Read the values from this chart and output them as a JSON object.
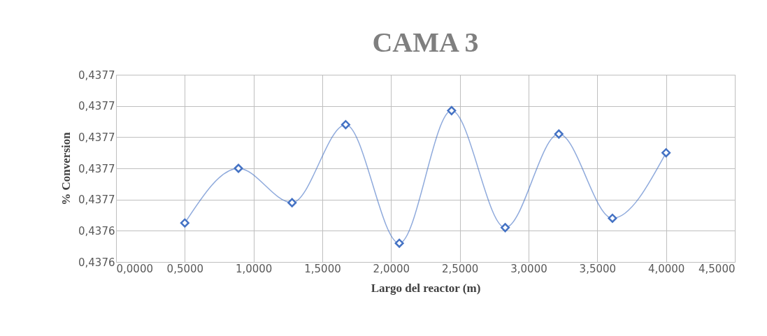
{
  "chart_data": {
    "type": "line",
    "title": "CAMA 3",
    "xlabel": "Largo del reactor (m)",
    "ylabel": "% Conversion",
    "x": [
      0.5,
      0.89,
      1.28,
      1.67,
      2.06,
      2.44,
      2.83,
      3.22,
      3.61,
      4.0
    ],
    "series": [
      {
        "color": "#4472c4",
        "values": [
          0.437645,
          0.43768,
          0.437658,
          0.437708,
          0.437632,
          0.437717,
          0.437642,
          0.437702,
          0.437648,
          0.43769
        ]
      }
    ],
    "xlim": [
      0,
      4.5
    ],
    "xticks": [
      {
        "value": 0,
        "label": "0,0000"
      },
      {
        "value": 0.5,
        "label": "0,5000"
      },
      {
        "value": 1,
        "label": "1,0000"
      },
      {
        "value": 1.5,
        "label": "1,5000"
      },
      {
        "value": 2,
        "label": "2,0000"
      },
      {
        "value": 2.5,
        "label": "2,5000"
      },
      {
        "value": 3,
        "label": "3,0000"
      },
      {
        "value": 3.5,
        "label": "3,5000"
      },
      {
        "value": 4,
        "label": "4,0000"
      },
      {
        "value": 4.5,
        "label": "4,5000"
      }
    ],
    "ylim": [
      0.43762,
      0.43774
    ],
    "yticks": [
      {
        "value": 0.43762,
        "label": "0,4376"
      },
      {
        "value": 0.43764,
        "label": "0,4376"
      },
      {
        "value": 0.43766,
        "label": "0,4377"
      },
      {
        "value": 0.43768,
        "label": "0,4377"
      },
      {
        "value": 0.4377,
        "label": "0,4377"
      },
      {
        "value": 0.43772,
        "label": "0,4377"
      },
      {
        "value": 0.43774,
        "label": "0,4377"
      }
    ],
    "grid": true,
    "marker": "diamond",
    "line_style": "solid"
  }
}
